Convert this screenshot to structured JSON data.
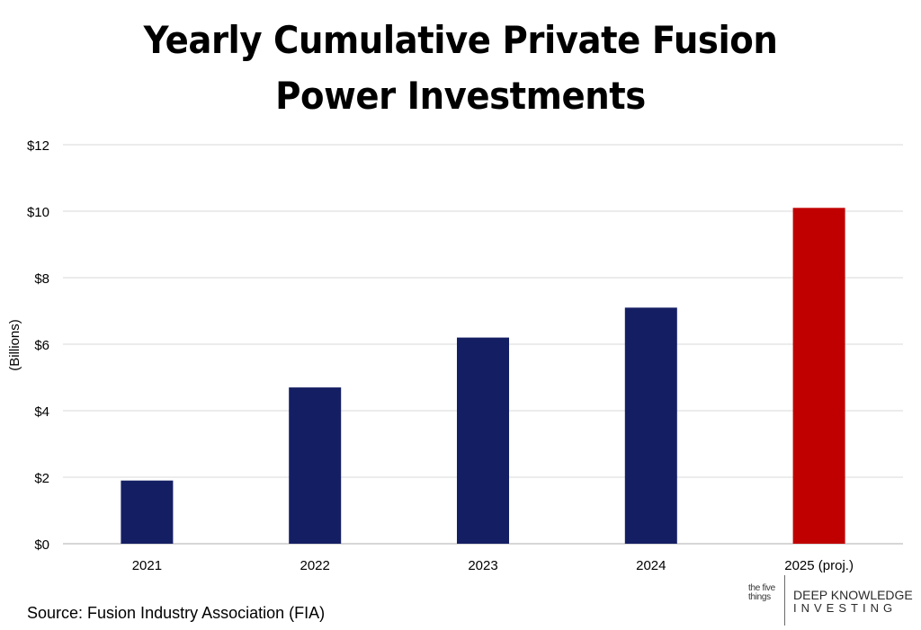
{
  "chart_data": {
    "type": "bar",
    "title": "Yearly Cumulative Private Fusion Power Investments",
    "title_lines": [
      "Yearly Cumulative Private Fusion",
      "Power Investments"
    ],
    "ylabel": "(Billions)",
    "xlabel": "",
    "categories": [
      "2021",
      "2022",
      "2023",
      "2024",
      "2025 (proj.)"
    ],
    "values": [
      1.9,
      4.7,
      6.2,
      7.1,
      10.1
    ],
    "bar_colors": [
      "#141f63",
      "#141f63",
      "#141f63",
      "#141f63",
      "#c00000"
    ],
    "ylim": [
      0,
      12
    ],
    "yticks": [
      0,
      2,
      4,
      6,
      8,
      10,
      12
    ],
    "ytick_labels": [
      "$0",
      "$2",
      "$4",
      "$6",
      "$8",
      "$10",
      "$12"
    ],
    "grid": true,
    "legend": "none"
  },
  "source": "Source: Fusion Industry Association (FIA)",
  "logo": {
    "small_text": "the five things",
    "brand_line1": "DEEP KNOWLEDGE",
    "brand_line2": "INVESTING"
  },
  "colors": {
    "bar_primary": "#141f63",
    "bar_projection": "#c00000",
    "gridline": "#d9d9d9",
    "axis": "#bfbfbf"
  }
}
